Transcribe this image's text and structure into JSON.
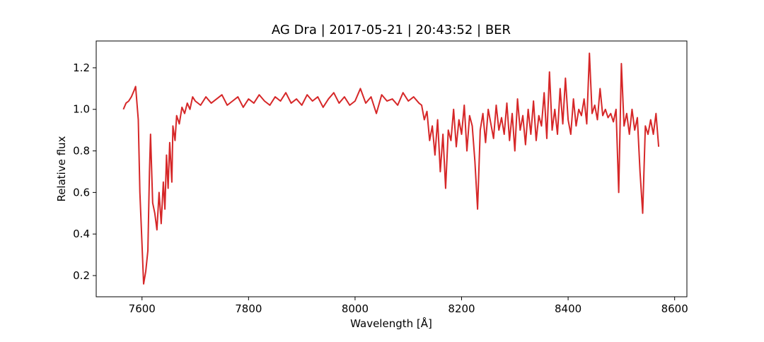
{
  "chart_data": {
    "type": "line",
    "title": "AG Dra | 2017-05-21 | 20:43:52 | BER",
    "xlabel": "Wavelength [Å]",
    "ylabel": "Relative flux",
    "xlim": [
      7514,
      8623
    ],
    "ylim": [
      0.098,
      1.329
    ],
    "xticks": [
      7600,
      7800,
      8000,
      8200,
      8400,
      8600
    ],
    "yticks": [
      0.2,
      0.4,
      0.6,
      0.8,
      {
        "value": 1,
        "label": "1.0"
      },
      1.2
    ],
    "series": [
      {
        "color": "#d62728",
        "x": [
          7565,
          7570,
          7575,
          7580,
          7585,
          7588,
          7593,
          7596,
          7600,
          7603,
          7607,
          7611,
          7614,
          7616,
          7620,
          7624,
          7628,
          7632,
          7636,
          7640,
          7643,
          7646,
          7649,
          7652,
          7656,
          7658,
          7662,
          7665,
          7670,
          7675,
          7680,
          7685,
          7690,
          7695,
          7700,
          7710,
          7720,
          7730,
          7740,
          7750,
          7760,
          7770,
          7780,
          7790,
          7800,
          7810,
          7820,
          7830,
          7840,
          7850,
          7860,
          7870,
          7880,
          7890,
          7900,
          7910,
          7920,
          7930,
          7940,
          7950,
          7960,
          7970,
          7980,
          7990,
          8000,
          8010,
          8020,
          8030,
          8040,
          8050,
          8060,
          8070,
          8080,
          8090,
          8100,
          8110,
          8120,
          8125,
          8130,
          8135,
          8140,
          8145,
          8150,
          8155,
          8160,
          8165,
          8170,
          8175,
          8180,
          8185,
          8190,
          8195,
          8200,
          8205,
          8210,
          8215,
          8220,
          8225,
          8230,
          8235,
          8240,
          8245,
          8250,
          8255,
          8260,
          8265,
          8270,
          8275,
          8280,
          8285,
          8290,
          8295,
          8300,
          8305,
          8310,
          8315,
          8320,
          8325,
          8330,
          8335,
          8340,
          8345,
          8350,
          8355,
          8360,
          8365,
          8370,
          8375,
          8380,
          8385,
          8390,
          8395,
          8400,
          8405,
          8410,
          8415,
          8420,
          8425,
          8430,
          8435,
          8440,
          8445,
          8450,
          8455,
          8460,
          8465,
          8470,
          8475,
          8480,
          8485,
          8490,
          8495,
          8500,
          8505,
          8510,
          8515,
          8520,
          8525,
          8530,
          8535,
          8540,
          8545,
          8550,
          8555,
          8560,
          8565,
          8570
        ],
        "values": [
          1.0,
          1.03,
          1.04,
          1.06,
          1.09,
          1.11,
          0.95,
          0.6,
          0.35,
          0.16,
          0.22,
          0.32,
          0.7,
          0.88,
          0.55,
          0.5,
          0.42,
          0.6,
          0.45,
          0.65,
          0.52,
          0.78,
          0.62,
          0.84,
          0.65,
          0.92,
          0.85,
          0.97,
          0.93,
          1.01,
          0.98,
          1.03,
          1.0,
          1.06,
          1.04,
          1.02,
          1.06,
          1.03,
          1.05,
          1.07,
          1.02,
          1.04,
          1.06,
          1.01,
          1.05,
          1.03,
          1.07,
          1.04,
          1.02,
          1.06,
          1.04,
          1.08,
          1.03,
          1.05,
          1.02,
          1.07,
          1.04,
          1.06,
          1.01,
          1.05,
          1.08,
          1.03,
          1.06,
          1.02,
          1.04,
          1.1,
          1.03,
          1.06,
          0.98,
          1.07,
          1.04,
          1.05,
          1.02,
          1.08,
          1.04,
          1.06,
          1.03,
          1.02,
          0.95,
          0.99,
          0.85,
          0.92,
          0.78,
          0.95,
          0.7,
          0.88,
          0.62,
          0.9,
          0.85,
          1.0,
          0.82,
          0.95,
          0.88,
          1.02,
          0.8,
          0.97,
          0.92,
          0.75,
          0.52,
          0.9,
          0.98,
          0.84,
          1.0,
          0.93,
          0.86,
          1.02,
          0.9,
          0.96,
          0.88,
          1.03,
          0.85,
          0.98,
          0.8,
          1.05,
          0.9,
          0.97,
          0.83,
          1.0,
          0.88,
          1.04,
          0.85,
          0.97,
          0.92,
          1.08,
          0.86,
          1.18,
          0.9,
          1.0,
          0.88,
          1.1,
          0.93,
          1.15,
          0.95,
          0.88,
          1.05,
          0.92,
          1.0,
          0.97,
          1.05,
          0.93,
          1.27,
          0.98,
          1.02,
          0.95,
          1.1,
          0.97,
          1.0,
          0.96,
          0.98,
          0.94,
          1.0,
          0.6,
          1.22,
          0.92,
          0.98,
          0.88,
          1.0,
          0.9,
          0.96,
          0.7,
          0.5,
          0.92,
          0.88,
          0.95,
          0.88,
          0.98,
          0.82
        ]
      }
    ]
  }
}
